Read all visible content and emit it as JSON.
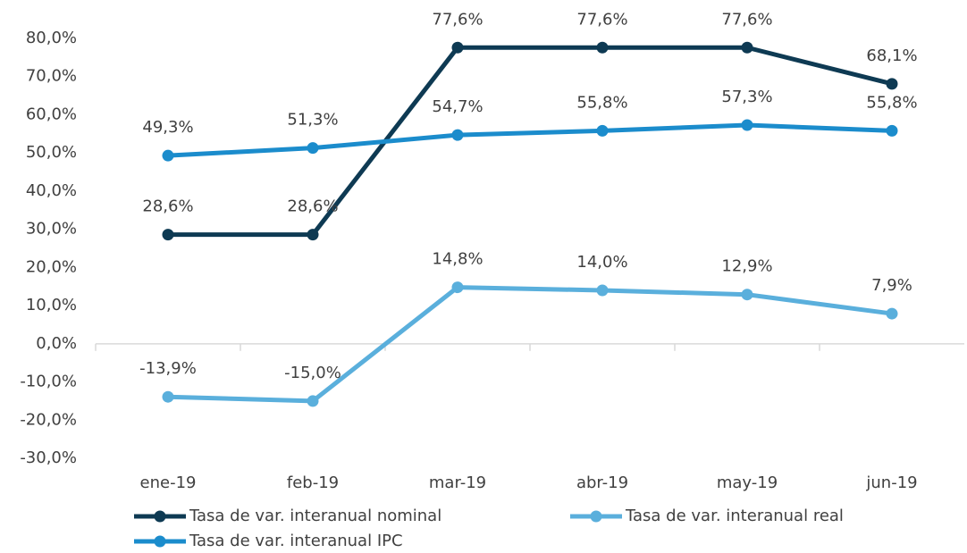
{
  "chart_data": {
    "type": "line",
    "categories": [
      "ene-19",
      "feb-19",
      "mar-19",
      "abr-19",
      "may-19",
      "jun-19"
    ],
    "series": [
      {
        "name": "Tasa de var. interanual nominal",
        "color": "#0e3a53",
        "values": [
          28.6,
          28.6,
          77.6,
          77.6,
          77.6,
          68.1
        ],
        "value_labels": [
          "28,6%",
          "28,6%",
          "77,6%",
          "77,6%",
          "77,6%",
          "68,1%"
        ]
      },
      {
        "name": "Tasa de var. interanual real",
        "color": "#5aafdc",
        "values": [
          -13.9,
          -15.0,
          14.8,
          14.0,
          12.9,
          7.9
        ],
        "value_labels": [
          "-13,9%",
          "-15,0%",
          "14,8%",
          "14,0%",
          "12,9%",
          "7,9%"
        ]
      },
      {
        "name": "Tasa de var. interanual IPC",
        "color": "#1b8ccc",
        "values": [
          49.3,
          51.3,
          54.7,
          55.8,
          57.3,
          55.8
        ],
        "value_labels": [
          "49,3%",
          "51,3%",
          "54,7%",
          "55,8%",
          "57,3%",
          "55,8%"
        ]
      }
    ],
    "ylim": [
      -30,
      80
    ],
    "yticks": [
      {
        "value": -30,
        "label": "-30,0%"
      },
      {
        "value": -20,
        "label": "-20,0%"
      },
      {
        "value": -10,
        "label": "-10,0%"
      },
      {
        "value": 0,
        "label": "0,0%"
      },
      {
        "value": 10,
        "label": "10,0%"
      },
      {
        "value": 20,
        "label": "20,0%"
      },
      {
        "value": 30,
        "label": "30,0%"
      },
      {
        "value": 40,
        "label": "40,0%"
      },
      {
        "value": 50,
        "label": "50,0%"
      },
      {
        "value": 60,
        "label": "60,0%"
      },
      {
        "value": 70,
        "label": "70,0%"
      },
      {
        "value": 80,
        "label": "80,0%"
      }
    ],
    "grid": false,
    "legend": "bottom"
  }
}
